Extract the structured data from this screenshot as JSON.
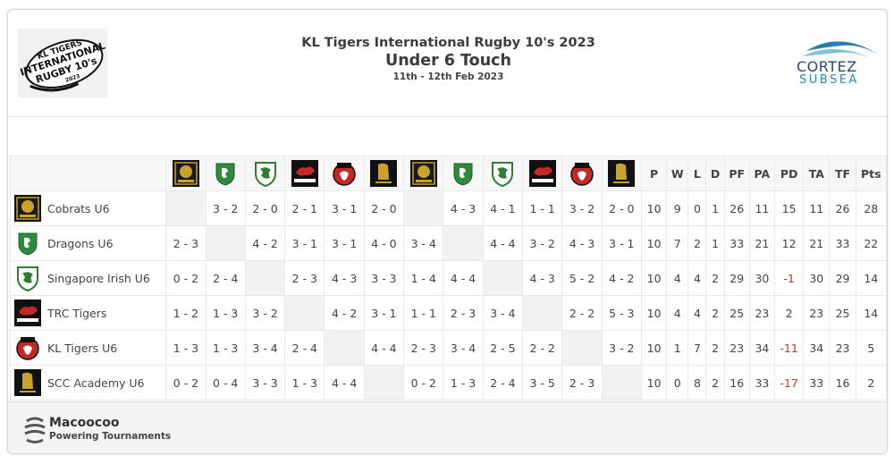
{
  "header": {
    "title": "KL Tigers International Rugby 10's 2023",
    "subtitle": "Under 6 Touch",
    "dates": "11th - 12th Feb 2023",
    "logo_left_text": [
      "KL TIGERS",
      "INTERNATIONAL",
      "RUGBY 10's",
      "2023"
    ],
    "sponsor": {
      "name": "CORTEZ",
      "sub": "SUBSEA",
      "color_primary": "#2a4a72",
      "color_secondary": "#2a8ab0"
    }
  },
  "table": {
    "stat_headers": [
      "P",
      "W",
      "L",
      "D",
      "PF",
      "PA",
      "PD",
      "TA",
      "TF",
      "Pts"
    ],
    "teams": [
      {
        "name": "Cobrats U6",
        "icon": "cobrats-logo-icon",
        "results": [
          "",
          "3 - 2",
          "2 - 0",
          "2 - 1",
          "3 - 1",
          "2 - 0",
          "",
          "4 - 3",
          "4 - 1",
          "1 - 1",
          "3 - 2",
          "2 - 0"
        ],
        "stats": [
          "10",
          "9",
          "0",
          "1",
          "26",
          "11",
          "15",
          "11",
          "26",
          "28"
        ]
      },
      {
        "name": "Dragons U6",
        "icon": "dragons-logo-icon",
        "results": [
          "2 - 3",
          "",
          "4 - 2",
          "3 - 1",
          "3 - 1",
          "4 - 0",
          "3 - 4",
          "",
          "4 - 4",
          "3 - 2",
          "4 - 3",
          "3 - 1"
        ],
        "stats": [
          "10",
          "7",
          "2",
          "1",
          "33",
          "21",
          "12",
          "21",
          "33",
          "22"
        ]
      },
      {
        "name": "Singapore Irish U6",
        "icon": "singapore-irish-logo-icon",
        "results": [
          "0 - 2",
          "2 - 4",
          "",
          "2 - 3",
          "4 - 3",
          "3 - 3",
          "1 - 4",
          "4 - 4",
          "",
          "4 - 3",
          "5 - 2",
          "4 - 2"
        ],
        "stats": [
          "10",
          "4",
          "4",
          "2",
          "29",
          "30",
          "-1",
          "30",
          "29",
          "14"
        ]
      },
      {
        "name": "TRC Tigers",
        "icon": "tanglin-logo-icon",
        "results": [
          "1 - 2",
          "1 - 3",
          "3 - 2",
          "",
          "4 - 2",
          "3 - 1",
          "1 - 1",
          "2 - 3",
          "3 - 4",
          "",
          "2 - 2",
          "5 - 3"
        ],
        "stats": [
          "10",
          "4",
          "4",
          "2",
          "25",
          "23",
          "2",
          "23",
          "25",
          "14"
        ]
      },
      {
        "name": "KL Tigers U6",
        "icon": "kl-tigers-logo-icon",
        "results": [
          "1 - 3",
          "1 - 3",
          "3 - 4",
          "2 - 4",
          "",
          "4 - 4",
          "2 - 3",
          "3 - 4",
          "2 - 5",
          "2 - 2",
          "",
          "3 - 2"
        ],
        "stats": [
          "10",
          "1",
          "7",
          "2",
          "23",
          "34",
          "-11",
          "34",
          "23",
          "5"
        ]
      },
      {
        "name": "SCC Academy U6",
        "icon": "scc-academy-logo-icon",
        "results": [
          "0 - 2",
          "0 - 4",
          "3 - 3",
          "1 - 3",
          "4 - 4",
          "",
          "0 - 2",
          "1 - 3",
          "2 - 4",
          "3 - 5",
          "2 - 3",
          ""
        ],
        "stats": [
          "10",
          "0",
          "8",
          "2",
          "16",
          "33",
          "-17",
          "33",
          "16",
          "2"
        ]
      }
    ],
    "column_icons": [
      "cobrats-logo-icon",
      "dragons-logo-icon",
      "singapore-irish-logo-icon",
      "tanglin-logo-icon",
      "kl-tigers-logo-icon",
      "scc-academy-logo-icon",
      "cobrats-logo-icon",
      "dragons-logo-icon",
      "singapore-irish-logo-icon",
      "tanglin-logo-icon",
      "kl-tigers-logo-icon",
      "scc-academy-logo-icon"
    ],
    "negative_color": "#c0392b"
  },
  "footer": {
    "brand": "Macoocoo",
    "tagline": "Powering Tournaments"
  }
}
